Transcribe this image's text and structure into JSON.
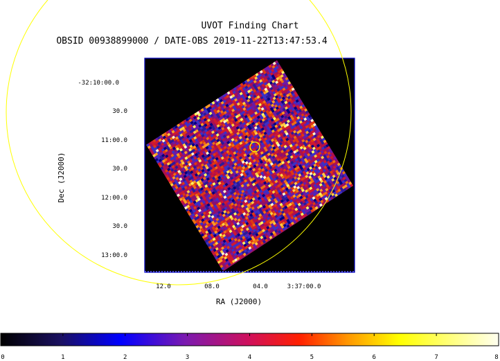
{
  "title": "UVOT Finding Chart",
  "subtitle": "OBSID 00938899000 / DATE-OBS 2019-11-22T13:47:53.4",
  "dec_axis": {
    "label": "Dec (J2000)",
    "ticks": [
      "-32:10:00.0",
      "30.0",
      "11:00.0",
      "30.0",
      "12:00.0",
      "30.0",
      "13:00.0"
    ]
  },
  "ra_axis": {
    "label": "RA (J2000)",
    "ticks": [
      "12.0",
      "08.0",
      "04.0",
      "3:37:00.0"
    ]
  },
  "colorbar": {
    "ticks": [
      "0",
      "1",
      "2",
      "3",
      "4",
      "5",
      "6",
      "7",
      "8"
    ],
    "range": [
      0,
      8
    ]
  },
  "colors": {
    "frame": "#0000c0",
    "circle": "#ffff00",
    "background": "#000000"
  }
}
